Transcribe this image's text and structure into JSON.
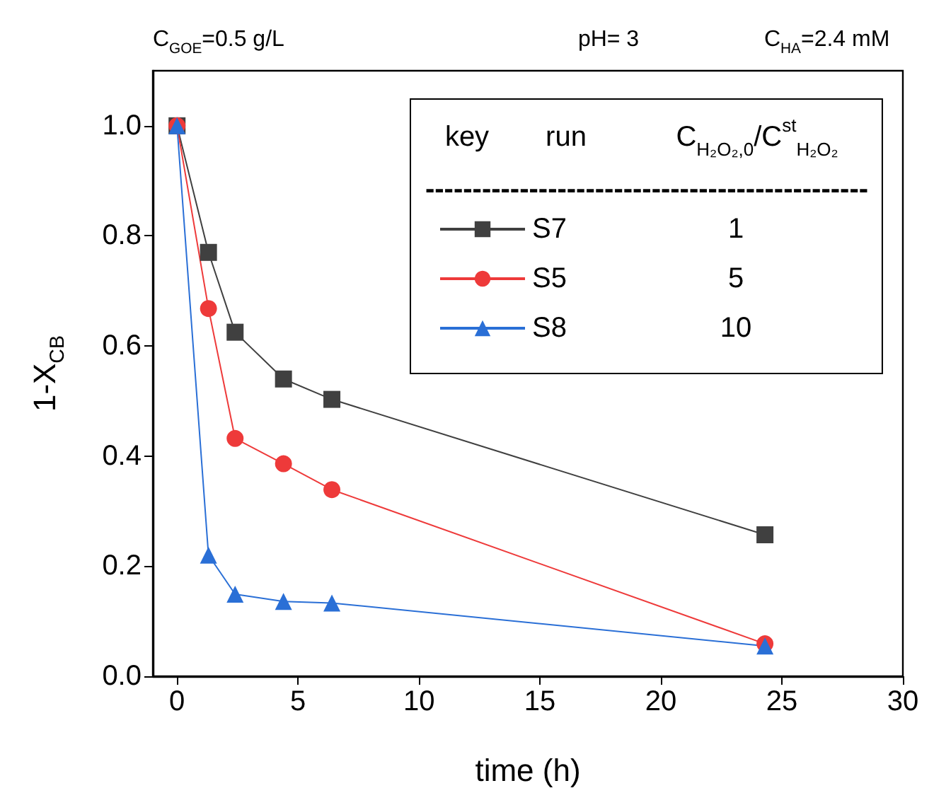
{
  "chart_data": {
    "type": "line",
    "xlabel": "time (h)",
    "ylabel": "1-X$_{CB}$",
    "xlim": [
      -1,
      30
    ],
    "xticks": [
      0,
      5,
      10,
      15,
      20,
      25,
      30
    ],
    "ylim": [
      0,
      1.1
    ],
    "yticks": [
      {
        "value": 0,
        "label": "0.0"
      },
      0.2,
      0.4,
      0.6,
      0.8,
      {
        "value": 1,
        "label": "1.0"
      }
    ],
    "grid": false,
    "legend": "top right",
    "annotations": [
      "C$_{GOE}$=0.5 g/L",
      "pH= 3",
      "C$_{HA}$=2.4 mM",
      "key",
      "run",
      "C$_{H₂O₂,0}$/C$^{st}$$_{H₂O₂}$",
      "1",
      "5",
      "10",
      "-----------------------------------------------"
    ],
    "series": [
      {
        "name": "S7",
        "color": "#404040",
        "marker": "square",
        "x": [
          0,
          1.3,
          2.4,
          4.4,
          6.4,
          24.3
        ],
        "values": [
          1.0,
          0.77,
          0.625,
          0.54,
          0.503,
          0.257
        ]
      },
      {
        "name": "S5",
        "color": "#ee3a3a",
        "marker": "circle",
        "x": [
          0,
          1.3,
          2.4,
          4.4,
          6.4,
          24.3
        ],
        "values": [
          1.0,
          0.668,
          0.432,
          0.386,
          0.339,
          0.059
        ]
      },
      {
        "name": "S8",
        "color": "#2a6fd6",
        "marker": "triangle",
        "x": [
          0,
          1.3,
          2.4,
          4.4,
          6.4,
          24.3
        ],
        "values": [
          1.0,
          0.22,
          0.149,
          0.136,
          0.133,
          0.055
        ]
      }
    ]
  }
}
